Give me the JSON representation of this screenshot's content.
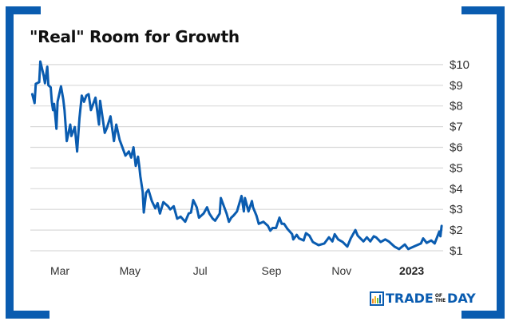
{
  "chart_data": {
    "type": "line",
    "title": "\"Real\" Room for Growth",
    "xlabel": "",
    "ylabel": "",
    "ylim": [
      1,
      10
    ],
    "y_ticks": [
      "$1",
      "$2",
      "$3",
      "$4",
      "$5",
      "$6",
      "$7",
      "$8",
      "$9",
      "$10"
    ],
    "y_axis_side": "right",
    "x_ticks": [
      {
        "label": "Mar",
        "date": "2022-03-01",
        "bold": false
      },
      {
        "label": "May",
        "date": "2022-05-01",
        "bold": false
      },
      {
        "label": "Jul",
        "date": "2022-07-01",
        "bold": false
      },
      {
        "label": "Sep",
        "date": "2022-09-01",
        "bold": false
      },
      {
        "label": "Nov",
        "date": "2022-11-01",
        "bold": false
      },
      {
        "label": "2023",
        "date": "2023-01-01",
        "bold": true
      }
    ],
    "grid": "horizontal",
    "line_color": "#0a5cb0",
    "series": [
      {
        "points": [
          [
            "2022-02-05",
            8.57
          ],
          [
            "2022-02-07",
            8.14
          ],
          [
            "2022-02-08",
            9.07
          ],
          [
            "2022-02-11",
            9.15
          ],
          [
            "2022-02-12",
            10.15
          ],
          [
            "2022-02-15",
            9.45
          ],
          [
            "2022-02-16",
            9.1
          ],
          [
            "2022-02-18",
            9.9
          ],
          [
            "2022-02-19",
            9.0
          ],
          [
            "2022-02-21",
            8.9
          ],
          [
            "2022-02-22",
            8.2
          ],
          [
            "2022-02-23",
            7.8
          ],
          [
            "2022-02-24",
            8.1
          ],
          [
            "2022-02-26",
            6.9
          ],
          [
            "2022-02-27",
            8.2
          ],
          [
            "2022-03-02",
            8.95
          ],
          [
            "2022-03-04",
            8.3
          ],
          [
            "2022-03-05",
            7.8
          ],
          [
            "2022-03-07",
            6.3
          ],
          [
            "2022-03-10",
            7.1
          ],
          [
            "2022-03-11",
            6.55
          ],
          [
            "2022-03-14",
            6.98
          ],
          [
            "2022-03-16",
            5.8
          ],
          [
            "2022-03-18",
            7.4
          ],
          [
            "2022-03-20",
            8.5
          ],
          [
            "2022-03-22",
            8.2
          ],
          [
            "2022-03-24",
            8.5
          ],
          [
            "2022-03-26",
            8.57
          ],
          [
            "2022-03-28",
            7.8
          ],
          [
            "2022-04-01",
            8.4
          ],
          [
            "2022-04-04",
            7.1
          ],
          [
            "2022-04-05",
            8.25
          ],
          [
            "2022-04-09",
            6.7
          ],
          [
            "2022-04-11",
            6.95
          ],
          [
            "2022-04-14",
            7.5
          ],
          [
            "2022-04-17",
            6.3
          ],
          [
            "2022-04-19",
            7.1
          ],
          [
            "2022-04-22",
            6.35
          ],
          [
            "2022-04-24",
            6.05
          ],
          [
            "2022-04-27",
            5.6
          ],
          [
            "2022-04-30",
            5.8
          ],
          [
            "2022-05-02",
            5.5
          ],
          [
            "2022-05-04",
            6.0
          ],
          [
            "2022-05-06",
            5.1
          ],
          [
            "2022-05-08",
            5.55
          ],
          [
            "2022-05-09",
            5.1
          ],
          [
            "2022-05-10",
            4.6
          ],
          [
            "2022-05-12",
            3.85
          ],
          [
            "2022-05-13",
            2.85
          ],
          [
            "2022-05-15",
            3.8
          ],
          [
            "2022-05-17",
            3.95
          ],
          [
            "2022-05-20",
            3.4
          ],
          [
            "2022-05-23",
            3.05
          ],
          [
            "2022-05-25",
            3.3
          ],
          [
            "2022-05-27",
            2.8
          ],
          [
            "2022-05-30",
            3.35
          ],
          [
            "2022-06-03",
            3.15
          ],
          [
            "2022-06-05",
            3.0
          ],
          [
            "2022-06-08",
            3.15
          ],
          [
            "2022-06-11",
            2.55
          ],
          [
            "2022-06-14",
            2.65
          ],
          [
            "2022-06-18",
            2.4
          ],
          [
            "2022-06-21",
            2.8
          ],
          [
            "2022-06-23",
            2.85
          ],
          [
            "2022-06-25",
            3.45
          ],
          [
            "2022-06-28",
            3.1
          ],
          [
            "2022-06-30",
            2.6
          ],
          [
            "2022-07-04",
            2.8
          ],
          [
            "2022-07-07",
            3.1
          ],
          [
            "2022-07-09",
            2.8
          ],
          [
            "2022-07-12",
            2.55
          ],
          [
            "2022-07-14",
            2.45
          ],
          [
            "2022-07-18",
            2.8
          ],
          [
            "2022-07-19",
            3.55
          ],
          [
            "2022-07-22",
            3.1
          ],
          [
            "2022-07-24",
            2.8
          ],
          [
            "2022-07-26",
            2.4
          ],
          [
            "2022-07-28",
            2.6
          ],
          [
            "2022-07-30",
            2.7
          ],
          [
            "2022-08-02",
            2.9
          ],
          [
            "2022-08-06",
            3.65
          ],
          [
            "2022-08-08",
            2.9
          ],
          [
            "2022-08-09",
            3.55
          ],
          [
            "2022-08-12",
            2.9
          ],
          [
            "2022-08-15",
            3.4
          ],
          [
            "2022-08-16",
            3.1
          ],
          [
            "2022-08-19",
            2.7
          ],
          [
            "2022-08-21",
            2.3
          ],
          [
            "2022-08-25",
            2.4
          ],
          [
            "2022-08-29",
            2.2
          ],
          [
            "2022-08-31",
            1.97
          ],
          [
            "2022-09-02",
            2.1
          ],
          [
            "2022-09-05",
            2.1
          ],
          [
            "2022-09-08",
            2.6
          ],
          [
            "2022-09-10",
            2.3
          ],
          [
            "2022-09-12",
            2.3
          ],
          [
            "2022-09-15",
            2.05
          ],
          [
            "2022-09-19",
            1.8
          ],
          [
            "2022-09-20",
            1.55
          ],
          [
            "2022-09-23",
            1.77
          ],
          [
            "2022-09-25",
            1.6
          ],
          [
            "2022-09-29",
            1.5
          ],
          [
            "2022-10-01",
            1.85
          ],
          [
            "2022-10-04",
            1.73
          ],
          [
            "2022-10-07",
            1.42
          ],
          [
            "2022-10-12",
            1.27
          ],
          [
            "2022-10-17",
            1.35
          ],
          [
            "2022-10-21",
            1.65
          ],
          [
            "2022-10-24",
            1.45
          ],
          [
            "2022-10-26",
            1.8
          ],
          [
            "2022-10-29",
            1.55
          ],
          [
            "2022-11-02",
            1.42
          ],
          [
            "2022-11-06",
            1.2
          ],
          [
            "2022-11-09",
            1.6
          ],
          [
            "2022-11-13",
            2.0
          ],
          [
            "2022-11-15",
            1.73
          ],
          [
            "2022-11-20",
            1.45
          ],
          [
            "2022-11-23",
            1.65
          ],
          [
            "2022-11-26",
            1.45
          ],
          [
            "2022-11-29",
            1.7
          ],
          [
            "2022-12-01",
            1.65
          ],
          [
            "2022-12-05",
            1.42
          ],
          [
            "2022-12-09",
            1.55
          ],
          [
            "2022-12-12",
            1.45
          ],
          [
            "2022-12-17",
            1.2
          ],
          [
            "2022-12-21",
            1.08
          ],
          [
            "2022-12-26",
            1.3
          ],
          [
            "2022-12-29",
            1.08
          ],
          [
            "2023-01-04",
            1.23
          ],
          [
            "2023-01-09",
            1.35
          ],
          [
            "2023-01-11",
            1.6
          ],
          [
            "2023-01-14",
            1.38
          ],
          [
            "2023-01-18",
            1.5
          ],
          [
            "2023-01-21",
            1.35
          ],
          [
            "2023-01-25",
            1.93
          ],
          [
            "2023-01-26",
            1.7
          ],
          [
            "2023-01-27",
            2.2
          ]
        ]
      }
    ]
  },
  "logo": {
    "left": "TRADE",
    "of": "OF",
    "the": "THE",
    "right": "DAY"
  },
  "colors": {
    "brand": "#0a5cb0",
    "grid": "#d9d9d9"
  }
}
